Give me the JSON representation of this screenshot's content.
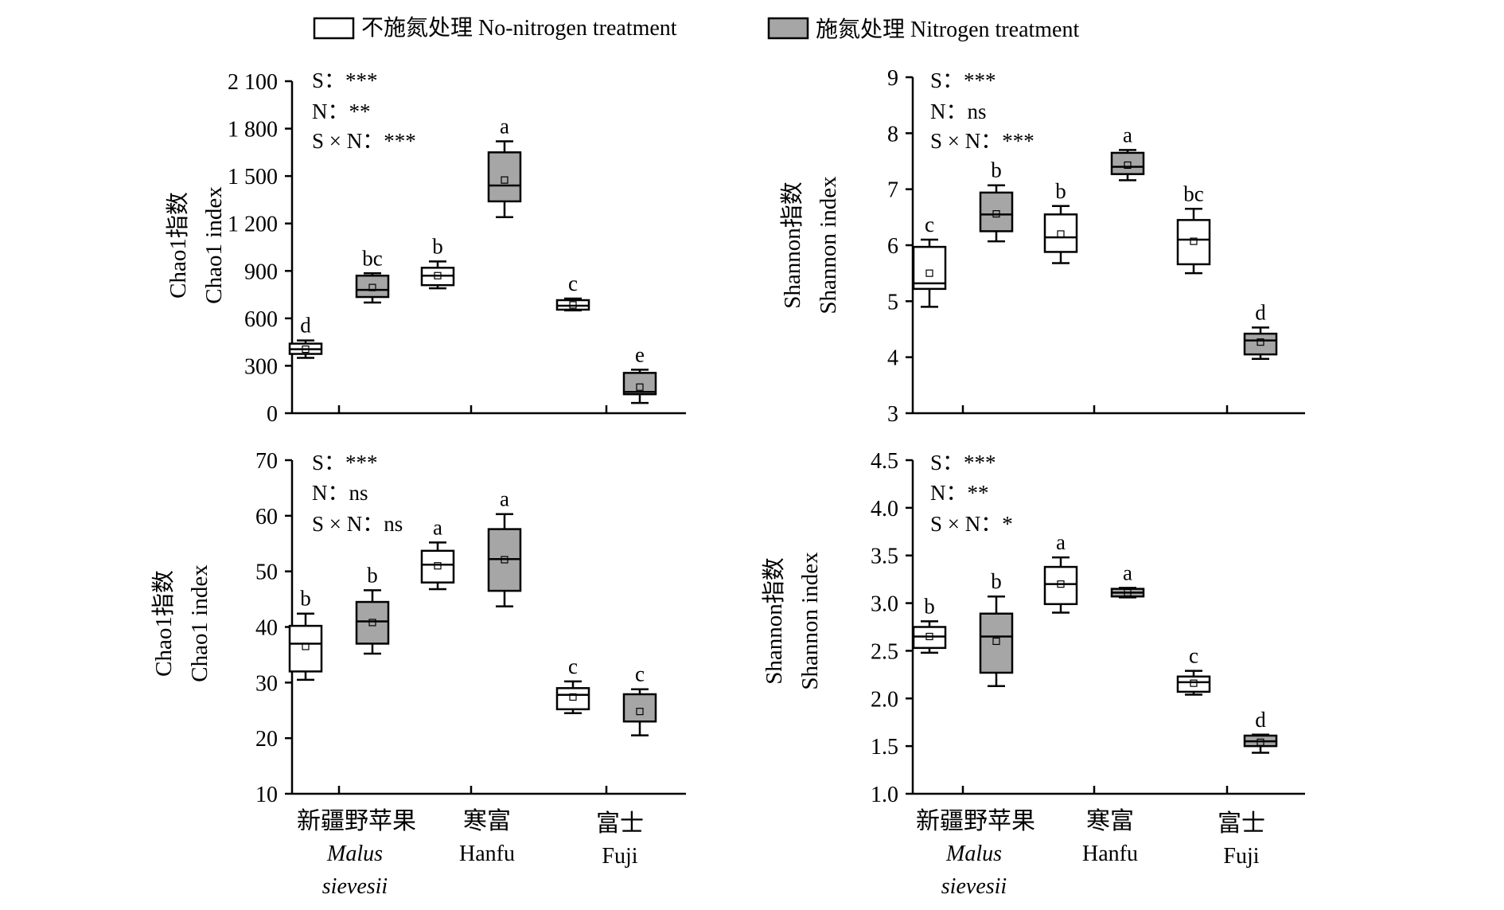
{
  "legend": {
    "no_nitrogen": "不施氮处理 No-nitrogen treatment",
    "nitrogen": "施氮处理 Nitrogen treatment",
    "no_nitrogen_color": "#ffffff",
    "nitrogen_color": "#a6a6a6"
  },
  "groups": [
    {
      "cn": "新疆野苹果",
      "en": "Malus",
      "en2": "sievesii"
    },
    {
      "cn": "寒富",
      "en": "Hanfu",
      "en2": ""
    },
    {
      "cn": "富士",
      "en": "Fuji",
      "en2": ""
    }
  ],
  "chart_data": [
    {
      "type": "box",
      "ylabel_cn": "Chao1指数",
      "ylabel_en": "Chao1 index",
      "ylim": [
        0,
        2100
      ],
      "ticks": [
        0,
        300,
        600,
        900,
        1200,
        1500,
        1800,
        2100
      ],
      "tick_labels": [
        "0",
        "300",
        "600",
        "900",
        "1 200",
        "1 500",
        "1 800",
        "2 100"
      ],
      "stats": [
        "S：***",
        "N：**",
        "S × N：***"
      ],
      "series": [
        {
          "name": "No-nitrogen treatment",
          "boxes": [
            {
              "group": "新疆野苹果",
              "min": 350,
              "q1": 375,
              "median": 405,
              "q3": 440,
              "max": 460,
              "mean": 405,
              "letter": "d"
            },
            {
              "group": "寒富",
              "min": 790,
              "q1": 810,
              "median": 870,
              "q3": 920,
              "max": 960,
              "mean": 870,
              "letter": "b"
            },
            {
              "group": "富士",
              "min": 650,
              "q1": 655,
              "median": 680,
              "q3": 715,
              "max": 725,
              "mean": 685,
              "letter": "c"
            }
          ]
        },
        {
          "name": "Nitrogen treatment",
          "boxes": [
            {
              "group": "新疆野苹果",
              "min": 700,
              "q1": 735,
              "median": 780,
              "q3": 870,
              "max": 885,
              "mean": 795,
              "letter": "bc"
            },
            {
              "group": "寒富",
              "min": 1240,
              "q1": 1340,
              "median": 1440,
              "q3": 1650,
              "max": 1720,
              "mean": 1475,
              "letter": "a"
            },
            {
              "group": "富士",
              "min": 65,
              "q1": 120,
              "median": 135,
              "q3": 255,
              "max": 275,
              "mean": 165,
              "letter": "e"
            }
          ]
        }
      ]
    },
    {
      "type": "box",
      "ylabel_cn": "Shannon指数",
      "ylabel_en": "Shannon index",
      "ylim": [
        3,
        9
      ],
      "ticks": [
        3,
        4,
        5,
        6,
        7,
        8,
        9
      ],
      "tick_labels": [
        "3",
        "4",
        "5",
        "6",
        "7",
        "8",
        "9"
      ],
      "stats": [
        "S：***",
        "N：ns",
        "S × N：***"
      ],
      "series": [
        {
          "name": "No-nitrogen treatment",
          "boxes": [
            {
              "group": "新疆野苹果",
              "min": 4.9,
              "q1": 5.22,
              "median": 5.32,
              "q3": 5.97,
              "max": 6.1,
              "mean": 5.5,
              "letter": "c"
            },
            {
              "group": "寒富",
              "min": 5.68,
              "q1": 5.88,
              "median": 6.14,
              "q3": 6.55,
              "max": 6.7,
              "mean": 6.2,
              "letter": "b"
            },
            {
              "group": "富士",
              "min": 5.5,
              "q1": 5.66,
              "median": 6.1,
              "q3": 6.45,
              "max": 6.65,
              "mean": 6.07,
              "letter": "bc"
            }
          ]
        },
        {
          "name": "Nitrogen treatment",
          "boxes": [
            {
              "group": "新疆野苹果",
              "min": 6.07,
              "q1": 6.25,
              "median": 6.55,
              "q3": 6.94,
              "max": 7.07,
              "mean": 6.56,
              "letter": "b"
            },
            {
              "group": "寒富",
              "min": 7.16,
              "q1": 7.27,
              "median": 7.4,
              "q3": 7.65,
              "max": 7.7,
              "mean": 7.43,
              "letter": "a"
            },
            {
              "group": "富士",
              "min": 3.97,
              "q1": 4.05,
              "median": 4.3,
              "q3": 4.42,
              "max": 4.53,
              "mean": 4.27,
              "letter": "d"
            }
          ]
        }
      ]
    },
    {
      "type": "box",
      "ylabel_cn": "Chao1指数",
      "ylabel_en": "Chao1 index",
      "ylim": [
        10,
        70
      ],
      "ticks": [
        10,
        20,
        30,
        40,
        50,
        60,
        70
      ],
      "tick_labels": [
        "10",
        "20",
        "30",
        "40",
        "50",
        "60",
        "70"
      ],
      "stats": [
        "S：***",
        "N：ns",
        "S × N：ns"
      ],
      "series": [
        {
          "name": "No-nitrogen treatment",
          "boxes": [
            {
              "group": "新疆野苹果",
              "min": 30.5,
              "q1": 32,
              "median": 37,
              "q3": 40.2,
              "max": 42.4,
              "mean": 36.5,
              "letter": "b"
            },
            {
              "group": "寒富",
              "min": 46.8,
              "q1": 48,
              "median": 51.2,
              "q3": 53.7,
              "max": 55.2,
              "mean": 51,
              "letter": "a"
            },
            {
              "group": "富士",
              "min": 24.5,
              "q1": 25.2,
              "median": 27.8,
              "q3": 29,
              "max": 30.2,
              "mean": 27.4,
              "letter": "c"
            }
          ]
        },
        {
          "name": "Nitrogen treatment",
          "boxes": [
            {
              "group": "新疆野苹果",
              "min": 35.2,
              "q1": 37,
              "median": 41,
              "q3": 44.5,
              "max": 46.6,
              "mean": 40.8,
              "letter": "b"
            },
            {
              "group": "寒富",
              "min": 43.7,
              "q1": 46.5,
              "median": 52.2,
              "q3": 57.6,
              "max": 60.3,
              "mean": 52.1,
              "letter": "a"
            },
            {
              "group": "富士",
              "min": 20.5,
              "q1": 23,
              "median": 23,
              "q3": 27.9,
              "max": 28.8,
              "mean": 24.8,
              "letter": "c"
            }
          ]
        }
      ]
    },
    {
      "type": "box",
      "ylabel_cn": "Shannon指数",
      "ylabel_en": "Shannon index",
      "ylim": [
        1.0,
        4.5
      ],
      "ticks": [
        1.0,
        1.5,
        2.0,
        2.5,
        3.0,
        3.5,
        4.0,
        4.5
      ],
      "tick_labels": [
        "1.0",
        "1.5",
        "2.0",
        "2.5",
        "3.0",
        "3.5",
        "4.0",
        "4.5"
      ],
      "stats": [
        "S：***",
        "N：**",
        "S × N：*"
      ],
      "series": [
        {
          "name": "No-nitrogen treatment",
          "boxes": [
            {
              "group": "新疆野苹果",
              "min": 2.48,
              "q1": 2.53,
              "median": 2.65,
              "q3": 2.75,
              "max": 2.81,
              "mean": 2.65,
              "letter": "b"
            },
            {
              "group": "寒富",
              "min": 2.9,
              "q1": 2.99,
              "median": 3.2,
              "q3": 3.38,
              "max": 3.48,
              "mean": 3.2,
              "letter": "a"
            },
            {
              "group": "富士",
              "min": 2.04,
              "q1": 2.07,
              "median": 2.17,
              "q3": 2.23,
              "max": 2.29,
              "mean": 2.16,
              "letter": "c"
            }
          ]
        },
        {
          "name": "Nitrogen treatment",
          "boxes": [
            {
              "group": "新疆野苹果",
              "min": 2.13,
              "q1": 2.27,
              "median": 2.65,
              "q3": 2.89,
              "max": 3.07,
              "mean": 2.6,
              "letter": "b"
            },
            {
              "group": "寒富",
              "min": 3.06,
              "q1": 3.07,
              "median": 3.11,
              "q3": 3.15,
              "max": 3.16,
              "mean": 3.11,
              "letter": "a"
            },
            {
              "group": "富士",
              "min": 1.43,
              "q1": 1.5,
              "median": 1.55,
              "q3": 1.61,
              "max": 1.62,
              "mean": 1.54,
              "letter": "d"
            }
          ]
        }
      ]
    }
  ]
}
